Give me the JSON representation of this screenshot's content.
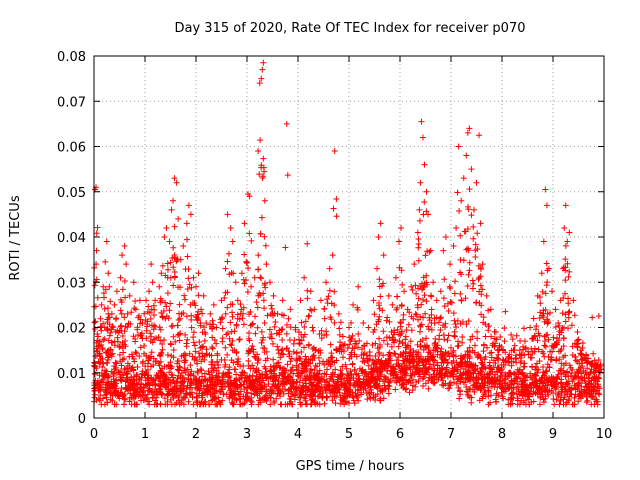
{
  "chart_data": {
    "type": "scatter",
    "title": "Day 315 of 2020, Rate Of TEC Index for receiver p070",
    "xlabel": "GPS time / hours",
    "ylabel": "ROTI / TECUs",
    "xlim": [
      0,
      10
    ],
    "ylim": [
      0,
      0.08
    ],
    "xticks": [
      "0",
      "1",
      "2",
      "3",
      "4",
      "5",
      "6",
      "7",
      "8",
      "9",
      "10"
    ],
    "yticks": [
      "0",
      "0.01",
      "0.02",
      "0.03",
      "0.04",
      "0.05",
      "0.06",
      "0.07",
      "0.08"
    ],
    "grid": true,
    "legend": "none",
    "marker": "plus",
    "color": "#ff0000",
    "series": [
      {
        "name": "ROTI",
        "points": [
          [
            0.02,
            0.0505
          ],
          [
            0.04,
            0.051
          ],
          [
            0.05,
            0.037
          ],
          [
            0.08,
            0.018
          ],
          [
            0.1,
            0.016
          ],
          [
            0.15,
            0.025
          ],
          [
            0.18,
            0.029
          ],
          [
            0.22,
            0.0345
          ],
          [
            0.25,
            0.039
          ],
          [
            0.28,
            0.032
          ],
          [
            0.3,
            0.029
          ],
          [
            0.35,
            0.023
          ],
          [
            0.4,
            0.025
          ],
          [
            0.45,
            0.028
          ],
          [
            0.52,
            0.031
          ],
          [
            0.55,
            0.036
          ],
          [
            0.6,
            0.038
          ],
          [
            0.63,
            0.034
          ],
          [
            0.7,
            0.027
          ],
          [
            0.78,
            0.03
          ],
          [
            0.82,
            0.024
          ],
          [
            0.9,
            0.026
          ],
          [
            0.95,
            0.021
          ],
          [
            1.02,
            0.026
          ],
          [
            1.08,
            0.028
          ],
          [
            1.12,
            0.034
          ],
          [
            1.15,
            0.03
          ],
          [
            1.2,
            0.026
          ],
          [
            1.28,
            0.029
          ],
          [
            1.32,
            0.032
          ],
          [
            1.38,
            0.04
          ],
          [
            1.42,
            0.042
          ],
          [
            1.48,
            0.039
          ],
          [
            1.52,
            0.046
          ],
          [
            1.55,
            0.048
          ],
          [
            1.58,
            0.053
          ],
          [
            1.62,
            0.052
          ],
          [
            1.65,
            0.044
          ],
          [
            1.7,
            0.035
          ],
          [
            1.75,
            0.038
          ],
          [
            1.82,
            0.043
          ],
          [
            1.86,
            0.047
          ],
          [
            1.9,
            0.045
          ],
          [
            1.95,
            0.031
          ],
          [
            2.0,
            0.029
          ],
          [
            2.05,
            0.032
          ],
          [
            2.1,
            0.024
          ],
          [
            2.15,
            0.027
          ],
          [
            2.2,
            0.021
          ],
          [
            2.28,
            0.023
          ],
          [
            2.35,
            0.025
          ],
          [
            2.4,
            0.02
          ],
          [
            2.5,
            0.026
          ],
          [
            2.58,
            0.033
          ],
          [
            2.62,
            0.045
          ],
          [
            2.68,
            0.042
          ],
          [
            2.72,
            0.039
          ],
          [
            2.78,
            0.03
          ],
          [
            2.82,
            0.026
          ],
          [
            2.9,
            0.032
          ],
          [
            2.95,
            0.043
          ],
          [
            3.02,
            0.0495
          ],
          [
            3.05,
            0.049
          ],
          [
            3.08,
            0.029
          ],
          [
            3.15,
            0.031
          ],
          [
            3.22,
            0.036
          ],
          [
            3.25,
            0.074
          ],
          [
            3.28,
            0.075
          ],
          [
            3.3,
            0.077
          ],
          [
            3.32,
            0.0785
          ],
          [
            3.35,
            0.048
          ],
          [
            3.38,
            0.034
          ],
          [
            3.45,
            0.03
          ],
          [
            3.52,
            0.027
          ],
          [
            3.6,
            0.023
          ],
          [
            3.7,
            0.026
          ],
          [
            3.78,
            0.065
          ],
          [
            3.85,
            0.024
          ],
          [
            3.95,
            0.02
          ],
          [
            4.05,
            0.026
          ],
          [
            4.12,
            0.031
          ],
          [
            4.18,
            0.0385
          ],
          [
            4.25,
            0.028
          ],
          [
            4.32,
            0.024
          ],
          [
            4.45,
            0.026
          ],
          [
            4.55,
            0.03
          ],
          [
            4.62,
            0.033
          ],
          [
            4.68,
            0.036
          ],
          [
            4.72,
            0.059
          ],
          [
            4.8,
            0.023
          ],
          [
            4.88,
            0.018
          ],
          [
            5.0,
            0.02
          ],
          [
            5.08,
            0.025
          ],
          [
            5.18,
            0.029
          ],
          [
            5.28,
            0.021
          ],
          [
            5.38,
            0.02
          ],
          [
            5.48,
            0.026
          ],
          [
            5.55,
            0.033
          ],
          [
            5.58,
            0.04
          ],
          [
            5.62,
            0.043
          ],
          [
            5.68,
            0.036
          ],
          [
            5.78,
            0.027
          ],
          [
            5.85,
            0.025
          ],
          [
            5.92,
            0.031
          ],
          [
            5.98,
            0.039
          ],
          [
            6.02,
            0.042
          ],
          [
            6.08,
            0.028
          ],
          [
            6.15,
            0.024
          ],
          [
            6.22,
            0.029
          ],
          [
            6.28,
            0.034
          ],
          [
            6.35,
            0.041
          ],
          [
            6.38,
            0.046
          ],
          [
            6.4,
            0.052
          ],
          [
            6.42,
            0.0655
          ],
          [
            6.45,
            0.062
          ],
          [
            6.48,
            0.056
          ],
          [
            6.52,
            0.05
          ],
          [
            6.55,
            0.045
          ],
          [
            6.6,
            0.037
          ],
          [
            6.65,
            0.03
          ],
          [
            6.72,
            0.026
          ],
          [
            6.8,
            0.028
          ],
          [
            6.85,
            0.037
          ],
          [
            6.9,
            0.04
          ],
          [
            6.98,
            0.034
          ],
          [
            7.05,
            0.038
          ],
          [
            7.1,
            0.042
          ],
          [
            7.15,
            0.06
          ],
          [
            7.2,
            0.048
          ],
          [
            7.25,
            0.053
          ],
          [
            7.3,
            0.058
          ],
          [
            7.33,
            0.063
          ],
          [
            7.36,
            0.064
          ],
          [
            7.4,
            0.055
          ],
          [
            7.45,
            0.046
          ],
          [
            7.5,
            0.052
          ],
          [
            7.55,
            0.0625
          ],
          [
            7.58,
            0.043
          ],
          [
            7.62,
            0.034
          ],
          [
            7.7,
            0.027
          ],
          [
            7.78,
            0.024
          ],
          [
            7.88,
            0.019
          ],
          [
            7.95,
            0.016
          ],
          [
            8.05,
            0.017
          ],
          [
            8.15,
            0.014
          ],
          [
            8.25,
            0.016
          ],
          [
            8.35,
            0.015
          ],
          [
            8.45,
            0.017
          ],
          [
            8.55,
            0.02
          ],
          [
            8.62,
            0.022
          ],
          [
            8.7,
            0.027
          ],
          [
            8.78,
            0.032
          ],
          [
            8.82,
            0.039
          ],
          [
            8.85,
            0.0505
          ],
          [
            8.88,
            0.047
          ],
          [
            8.92,
            0.033
          ],
          [
            8.98,
            0.028
          ],
          [
            9.05,
            0.024
          ],
          [
            9.1,
            0.021
          ],
          [
            9.15,
            0.026
          ],
          [
            9.2,
            0.033
          ],
          [
            9.22,
            0.042
          ],
          [
            9.25,
            0.047
          ],
          [
            9.28,
            0.039
          ],
          [
            9.32,
            0.041
          ],
          [
            9.4,
            0.026
          ],
          [
            9.48,
            0.019
          ],
          [
            9.55,
            0.015
          ],
          [
            9.65,
            0.014
          ],
          [
            9.75,
            0.012
          ],
          [
            9.85,
            0.011
          ],
          [
            9.92,
            0.01
          ]
        ]
      }
    ]
  },
  "colors": {
    "marker": "#ff0000",
    "grid": "#a0a0a0",
    "axis": "#000000",
    "background": "#ffffff"
  }
}
